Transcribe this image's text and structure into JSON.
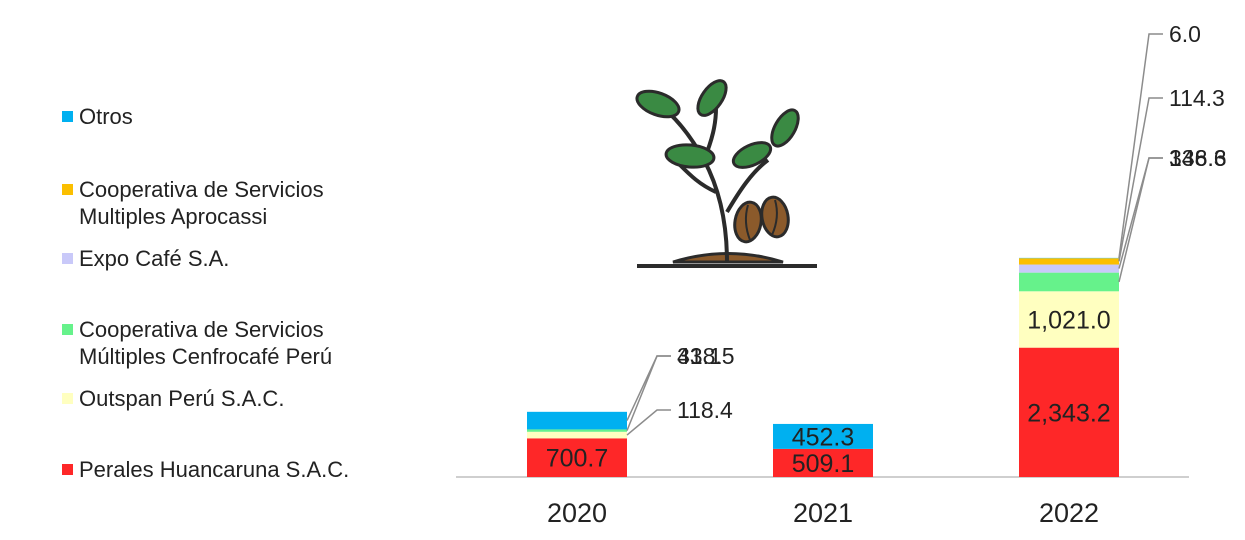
{
  "chart_data": {
    "type": "bar",
    "stacked": true,
    "categories": [
      "2020",
      "2021",
      "2022"
    ],
    "series": [
      {
        "name": "Perales Huancaruna S.A.C.",
        "color": "#fe2728",
        "values": [
          700.7,
          509.1,
          2343.2
        ],
        "labels": [
          "700.7",
          "509.1",
          "2,343.2"
        ]
      },
      {
        "name": "Outspan Perú S.A.C.",
        "color": "#ffffc0",
        "values": [
          118.4,
          0,
          1021.0
        ],
        "labels": [
          "118.4",
          "",
          "1,021.0"
        ]
      },
      {
        "name": "Cooperativa de Servicios Múltiples Cenfrocafé Perú",
        "color": "#66f28b",
        "values": [
          43.1,
          0,
          338.3
        ],
        "labels": [
          "43.1",
          "",
          "338.3"
        ]
      },
      {
        "name": "Expo Café S.A.",
        "color": "#c9c9f9",
        "values": [
          0,
          0,
          146.6
        ],
        "labels": [
          "",
          "",
          "146.6"
        ]
      },
      {
        "name": "Cooperativa de Servicios Multiples Aprocassi",
        "color": "#fbbf00",
        "values": [
          0,
          0,
          114.3
        ],
        "labels": [
          "",
          "",
          "114.3"
        ]
      },
      {
        "name": "Otros",
        "color": "#00b0f0",
        "values": [
          318.5,
          452.3,
          6.0
        ],
        "labels": [
          "318.5",
          "452.3",
          "6.0"
        ]
      }
    ],
    "xlabel": "",
    "ylabel": "",
    "grid": false,
    "legend": "left",
    "axis_line_color": "#bfbfbf"
  },
  "legend_items": [
    {
      "label": "Otros",
      "color": "#00b0f0"
    },
    {
      "label": "Cooperativa de Servicios Multiples Aprocassi",
      "color": "#fbbf00"
    },
    {
      "label": "Expo Café S.A.",
      "color": "#c9c9f9"
    },
    {
      "label": "Cooperativa de Servicios Múltiples Cenfrocafé Perú",
      "color": "#66f28b"
    },
    {
      "label": "Outspan Perú S.A.C.",
      "color": "#ffffc0"
    },
    {
      "label": "Perales Huancaruna S.A.C.",
      "color": "#fe2728"
    }
  ],
  "illustration": {
    "icon": "coffee-plant-icon",
    "leaf_color": "#3a8a43",
    "bean_color": "#8b5a2b",
    "outline_color": "#2b2b2b"
  }
}
